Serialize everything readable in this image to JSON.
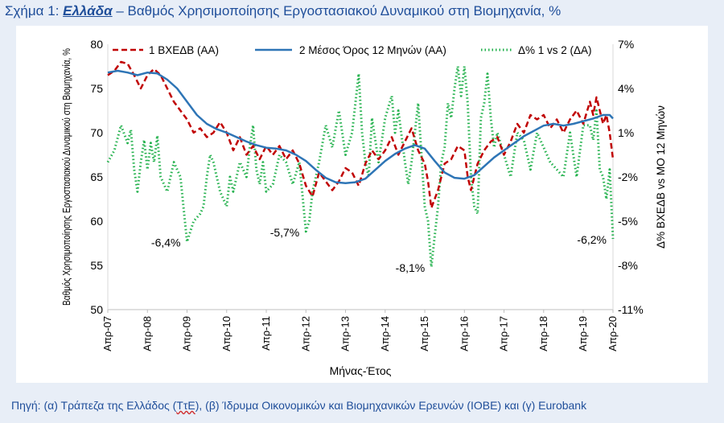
{
  "figure": {
    "prefix": "Σχήμα 1: ",
    "country": "Ελλάδα",
    "rest": " – Βαθμός Χρησιμοποίησης Εργοστασιακού Δυναμικού στη Βιομηχανία, %"
  },
  "source": {
    "before": "Πηγή: (α) Τράπεζα της Ελλάδος (",
    "abbr": "ΤτΕ",
    "after": "), (β) Ίδρυμα Οικονομικών και Βιομηχανικών Ερευνών (ΙΟΒΕ) και (γ) Eurobank"
  },
  "colors": {
    "series1": "#c00000",
    "series2": "#2e75b6",
    "series3": "#22b14c",
    "text": "#000000",
    "title": "#1f4e9a"
  },
  "chart_data": {
    "type": "line",
    "xlabel": "Μήνας-Έτος",
    "ylabel_left": "Βαθμός Χρησιμοποίησης Εργοστασιακού Δυναμικού στη Βιομηχανία, %",
    "ylabel_right": "Δ% ΒΧΕΔΒ vs ΜΟ 12 Μηνών",
    "ylim_left": [
      50,
      80
    ],
    "yticks_left": [
      "50",
      "55",
      "60",
      "65",
      "70",
      "75",
      "80"
    ],
    "ylim_right": [
      -11,
      7
    ],
    "yticks_right": [
      "-11%",
      "-8%",
      "-5%",
      "-2%",
      "1%",
      "4%",
      "7%"
    ],
    "x_tick_labels": [
      "Απρ-07",
      "Απρ-08",
      "Απρ-09",
      "Απρ-10",
      "Απρ-11",
      "Απρ-12",
      "Απρ-13",
      "Απρ-14",
      "Απρ-15",
      "Απρ-16",
      "Απρ-17",
      "Απρ-18",
      "Απρ-19",
      "Απρ-20"
    ],
    "x_month_index": [
      0,
      12,
      24,
      36,
      48,
      60,
      72,
      84,
      96,
      108,
      120,
      132,
      144,
      156
    ],
    "series_points": [
      {
        "name": "1 ΒΧΕΔΒ (ΑΑ)",
        "axis": "left",
        "points": [
          [
            0,
            76.5
          ],
          [
            2,
            77
          ],
          [
            4,
            78
          ],
          [
            6,
            77.8
          ],
          [
            8,
            76.5
          ],
          [
            10,
            75
          ],
          [
            12,
            76.5
          ],
          [
            14,
            77.2
          ],
          [
            16,
            76.5
          ],
          [
            18,
            75
          ],
          [
            20,
            73.5
          ],
          [
            22,
            72.5
          ],
          [
            24,
            71.5
          ],
          [
            26,
            70
          ],
          [
            28,
            70.5
          ],
          [
            30,
            69.5
          ],
          [
            32,
            70
          ],
          [
            34,
            71.2
          ],
          [
            36,
            70
          ],
          [
            38,
            68
          ],
          [
            40,
            69.5
          ],
          [
            42,
            67.5
          ],
          [
            44,
            68.5
          ],
          [
            46,
            67
          ],
          [
            48,
            68.5
          ],
          [
            50,
            67.5
          ],
          [
            52,
            68.5
          ],
          [
            54,
            67
          ],
          [
            56,
            68
          ],
          [
            58,
            66.5
          ],
          [
            60,
            64
          ],
          [
            62,
            62.8
          ],
          [
            64,
            65.5
          ],
          [
            66,
            64.5
          ],
          [
            68,
            63.5
          ],
          [
            70,
            64.5
          ],
          [
            72,
            66
          ],
          [
            74,
            65.5
          ],
          [
            76,
            64
          ],
          [
            78,
            66.5
          ],
          [
            80,
            68
          ],
          [
            82,
            67
          ],
          [
            84,
            68
          ],
          [
            86,
            69.5
          ],
          [
            88,
            67.5
          ],
          [
            90,
            69
          ],
          [
            92,
            70.5
          ],
          [
            94,
            68
          ],
          [
            96,
            66.5
          ],
          [
            97,
            64.5
          ],
          [
            98,
            61.5
          ],
          [
            100,
            63.5
          ],
          [
            102,
            66.5
          ],
          [
            104,
            67
          ],
          [
            106,
            68.5
          ],
          [
            108,
            68
          ],
          [
            109,
            65
          ],
          [
            110,
            63.5
          ],
          [
            112,
            66.5
          ],
          [
            114,
            68
          ],
          [
            116,
            69
          ],
          [
            118,
            69.5
          ],
          [
            120,
            67.5
          ],
          [
            122,
            69
          ],
          [
            124,
            71
          ],
          [
            126,
            70
          ],
          [
            128,
            72
          ],
          [
            130,
            71.5
          ],
          [
            132,
            72
          ],
          [
            134,
            70.5
          ],
          [
            136,
            71.5
          ],
          [
            138,
            70
          ],
          [
            140,
            71.5
          ],
          [
            142,
            72.5
          ],
          [
            144,
            71
          ],
          [
            146,
            73.5
          ],
          [
            147,
            72
          ],
          [
            148,
            74
          ],
          [
            150,
            71
          ],
          [
            151,
            72
          ],
          [
            152,
            70
          ],
          [
            153,
            67
          ]
        ]
      },
      {
        "name": "2 Μέσος Όρος 12 Μηνών (ΑΑ)",
        "axis": "left",
        "points": [
          [
            0,
            76.8
          ],
          [
            3,
            77
          ],
          [
            6,
            76.8
          ],
          [
            9,
            76.5
          ],
          [
            12,
            76.8
          ],
          [
            15,
            76.7
          ],
          [
            18,
            76
          ],
          [
            21,
            75
          ],
          [
            24,
            73.5
          ],
          [
            27,
            72
          ],
          [
            30,
            71
          ],
          [
            33,
            70.4
          ],
          [
            36,
            70
          ],
          [
            39,
            69.5
          ],
          [
            42,
            69
          ],
          [
            45,
            68.6
          ],
          [
            48,
            68.3
          ],
          [
            51,
            68.2
          ],
          [
            54,
            68
          ],
          [
            57,
            67.5
          ],
          [
            60,
            66.8
          ],
          [
            63,
            65.8
          ],
          [
            66,
            64.9
          ],
          [
            69,
            64.4
          ],
          [
            72,
            64.3
          ],
          [
            75,
            64.4
          ],
          [
            78,
            64.8
          ],
          [
            81,
            65.8
          ],
          [
            84,
            66.8
          ],
          [
            87,
            67.6
          ],
          [
            90,
            68.2
          ],
          [
            93,
            68.6
          ],
          [
            96,
            68.2
          ],
          [
            99,
            66.8
          ],
          [
            102,
            65.5
          ],
          [
            105,
            64.9
          ],
          [
            108,
            64.8
          ],
          [
            111,
            65.2
          ],
          [
            114,
            66.2
          ],
          [
            117,
            67.2
          ],
          [
            120,
            68
          ],
          [
            123,
            68.8
          ],
          [
            126,
            69.6
          ],
          [
            129,
            70.2
          ],
          [
            132,
            70.8
          ],
          [
            135,
            71
          ],
          [
            138,
            70.8
          ],
          [
            141,
            71
          ],
          [
            144,
            71.3
          ],
          [
            147,
            71.6
          ],
          [
            150,
            72
          ],
          [
            152,
            72
          ],
          [
            153,
            71.6
          ]
        ]
      },
      {
        "name": "Δ% 1 vs 2 (ΔΑ)",
        "axis": "right",
        "points": [
          [
            0,
            -1
          ],
          [
            2,
            -0.2
          ],
          [
            4,
            1.5
          ],
          [
            6,
            0.3
          ],
          [
            7,
            1.2
          ],
          [
            8,
            -1.5
          ],
          [
            9,
            -3
          ],
          [
            10,
            -1
          ],
          [
            11,
            0.5
          ],
          [
            12,
            -1.5
          ],
          [
            13,
            0.3
          ],
          [
            14,
            -1
          ],
          [
            15,
            0.8
          ],
          [
            16,
            -2
          ],
          [
            18,
            -3
          ],
          [
            20,
            -1
          ],
          [
            22,
            -2
          ],
          [
            24,
            -6.4
          ],
          [
            26,
            -5
          ],
          [
            28,
            -4.5
          ],
          [
            29,
            -4
          ],
          [
            30,
            -2
          ],
          [
            31,
            -0.5
          ],
          [
            32,
            -1
          ],
          [
            34,
            -3
          ],
          [
            36,
            -4
          ],
          [
            37,
            -2
          ],
          [
            38,
            -3
          ],
          [
            40,
            -1
          ],
          [
            42,
            -2
          ],
          [
            43,
            0
          ],
          [
            44,
            1.5
          ],
          [
            45,
            -1.5
          ],
          [
            46,
            -2.5
          ],
          [
            47,
            -1
          ],
          [
            48,
            -3
          ],
          [
            50,
            -2.5
          ],
          [
            52,
            -0.5
          ],
          [
            54,
            -1
          ],
          [
            56,
            -2.5
          ],
          [
            58,
            -1
          ],
          [
            60,
            -5.7
          ],
          [
            61,
            -5
          ],
          [
            62,
            -3
          ],
          [
            63,
            -2
          ],
          [
            64,
            -1
          ],
          [
            66,
            1.5
          ],
          [
            68,
            0
          ],
          [
            70,
            2.5
          ],
          [
            72,
            -0.5
          ],
          [
            74,
            1
          ],
          [
            76,
            5
          ],
          [
            77,
            1
          ],
          [
            78,
            -1
          ],
          [
            79,
            -2
          ],
          [
            80,
            2
          ],
          [
            82,
            -1
          ],
          [
            84,
            2
          ],
          [
            86,
            3.5
          ],
          [
            87,
            1
          ],
          [
            88,
            2.5
          ],
          [
            90,
            -1
          ],
          [
            91,
            -2.5
          ],
          [
            92,
            -1
          ],
          [
            94,
            3
          ],
          [
            96,
            -4
          ],
          [
            97,
            -5
          ],
          [
            98,
            -8.1
          ],
          [
            99,
            -6
          ],
          [
            100,
            -4
          ],
          [
            101,
            -1
          ],
          [
            102,
            0
          ],
          [
            103,
            3
          ],
          [
            104,
            2
          ],
          [
            105,
            4
          ],
          [
            106,
            5.5
          ],
          [
            107,
            3.5
          ],
          [
            108,
            5.5
          ],
          [
            109,
            3
          ],
          [
            110,
            -2
          ],
          [
            111,
            -4
          ],
          [
            112,
            -4.5
          ],
          [
            113,
            2
          ],
          [
            114,
            3
          ],
          [
            115,
            5
          ],
          [
            116,
            2
          ],
          [
            117,
            0
          ],
          [
            118,
            1
          ],
          [
            120,
            -0.5
          ],
          [
            122,
            -2
          ],
          [
            124,
            1
          ],
          [
            126,
            0.5
          ],
          [
            128,
            -1.5
          ],
          [
            130,
            1
          ],
          [
            132,
            0
          ],
          [
            134,
            -1
          ],
          [
            136,
            -1.5
          ],
          [
            138,
            -2
          ],
          [
            140,
            1
          ],
          [
            142,
            -2
          ],
          [
            144,
            1.5
          ],
          [
            146,
            1.5
          ],
          [
            147,
            0.5
          ],
          [
            148,
            2.5
          ],
          [
            149,
            -1.5
          ],
          [
            150,
            -2
          ],
          [
            151,
            -3.5
          ],
          [
            152,
            -1.5
          ],
          [
            153,
            -6.2
          ]
        ]
      }
    ],
    "annotations": [
      {
        "text": "-6,4%",
        "month": 24,
        "value": -6.4
      },
      {
        "text": "-5,7%",
        "month": 60,
        "value": -5.7
      },
      {
        "text": "-8,1%",
        "month": 98,
        "value": -8.1
      },
      {
        "text": "-6,2%",
        "month": 153,
        "value": -6.2
      }
    ]
  }
}
